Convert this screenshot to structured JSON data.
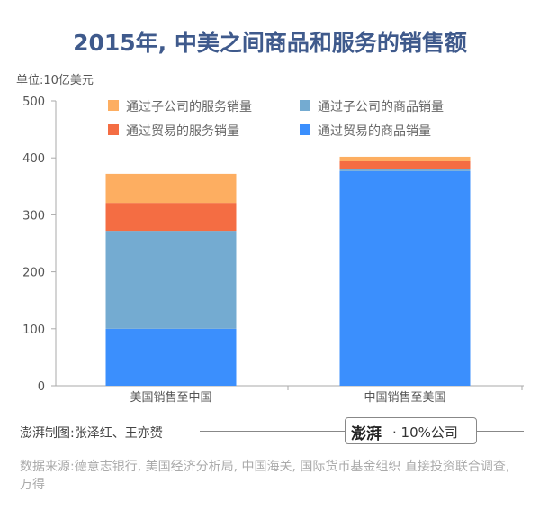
{
  "title": "2015年, 中美之间商品和服务的销售额",
  "unit": "单位:10亿美元",
  "credit": "澎湃制图:张泽红、王亦赟",
  "logo": {
    "seal": "澎湃",
    "text": "· 10%公司"
  },
  "source": "数据来源:德意志银行, 美国经济分析局, 中国海关, 国际货币基金组织 直接投资联合调查, 万得",
  "chart_data": {
    "type": "bar",
    "stacked": true,
    "categories": [
      "美国销售至中国",
      "中国销售至美国"
    ],
    "yticks": [
      "0",
      "100",
      "200",
      "300",
      "400",
      "500"
    ],
    "ylim": [
      0,
      500
    ],
    "legend": "top",
    "series": [
      {
        "name": "通过贸易的商品销量",
        "color": "#3b8ffd",
        "values": [
          100,
          377
        ]
      },
      {
        "name": "通过子公司的商品销量",
        "color": "#74abd1",
        "values": [
          172,
          3
        ]
      },
      {
        "name": "通过贸易的服务销量",
        "color": "#f46d43",
        "values": [
          49,
          14
        ]
      },
      {
        "name": "通过子公司的服务销量",
        "color": "#fdae61",
        "values": [
          51,
          8
        ]
      }
    ],
    "legend_order": [
      3,
      1,
      2,
      0
    ]
  }
}
